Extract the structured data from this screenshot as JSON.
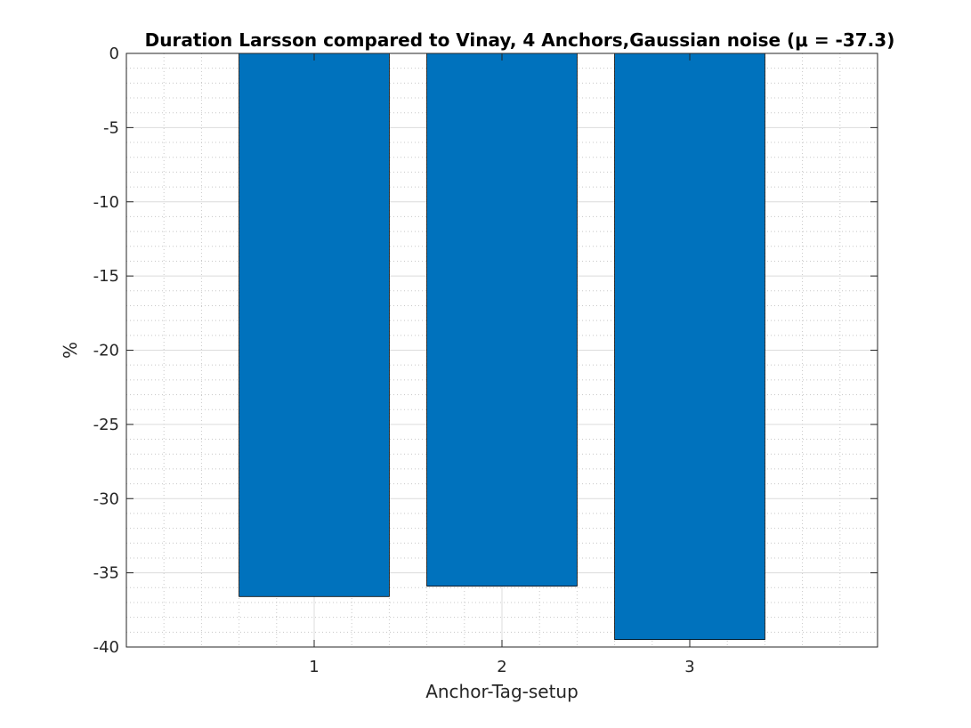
{
  "chart_data": {
    "type": "bar",
    "title": "Duration Larsson compared to Vinay, 4 Anchors,Gaussian noise (μ = -37.3)",
    "xlabel": "Anchor-Tag-setup",
    "ylabel": "%",
    "categories": [
      "1",
      "2",
      "3"
    ],
    "values": [
      -36.6,
      -35.9,
      -39.5
    ],
    "ylim": [
      -40,
      0
    ],
    "xlim": [
      0,
      4
    ],
    "yticks": [
      "0",
      "-5",
      "-10",
      "-15",
      "-20",
      "-25",
      "-30",
      "-35",
      "-40"
    ],
    "grid": true,
    "minor_grid": true,
    "bar_color": "#0072BD"
  }
}
